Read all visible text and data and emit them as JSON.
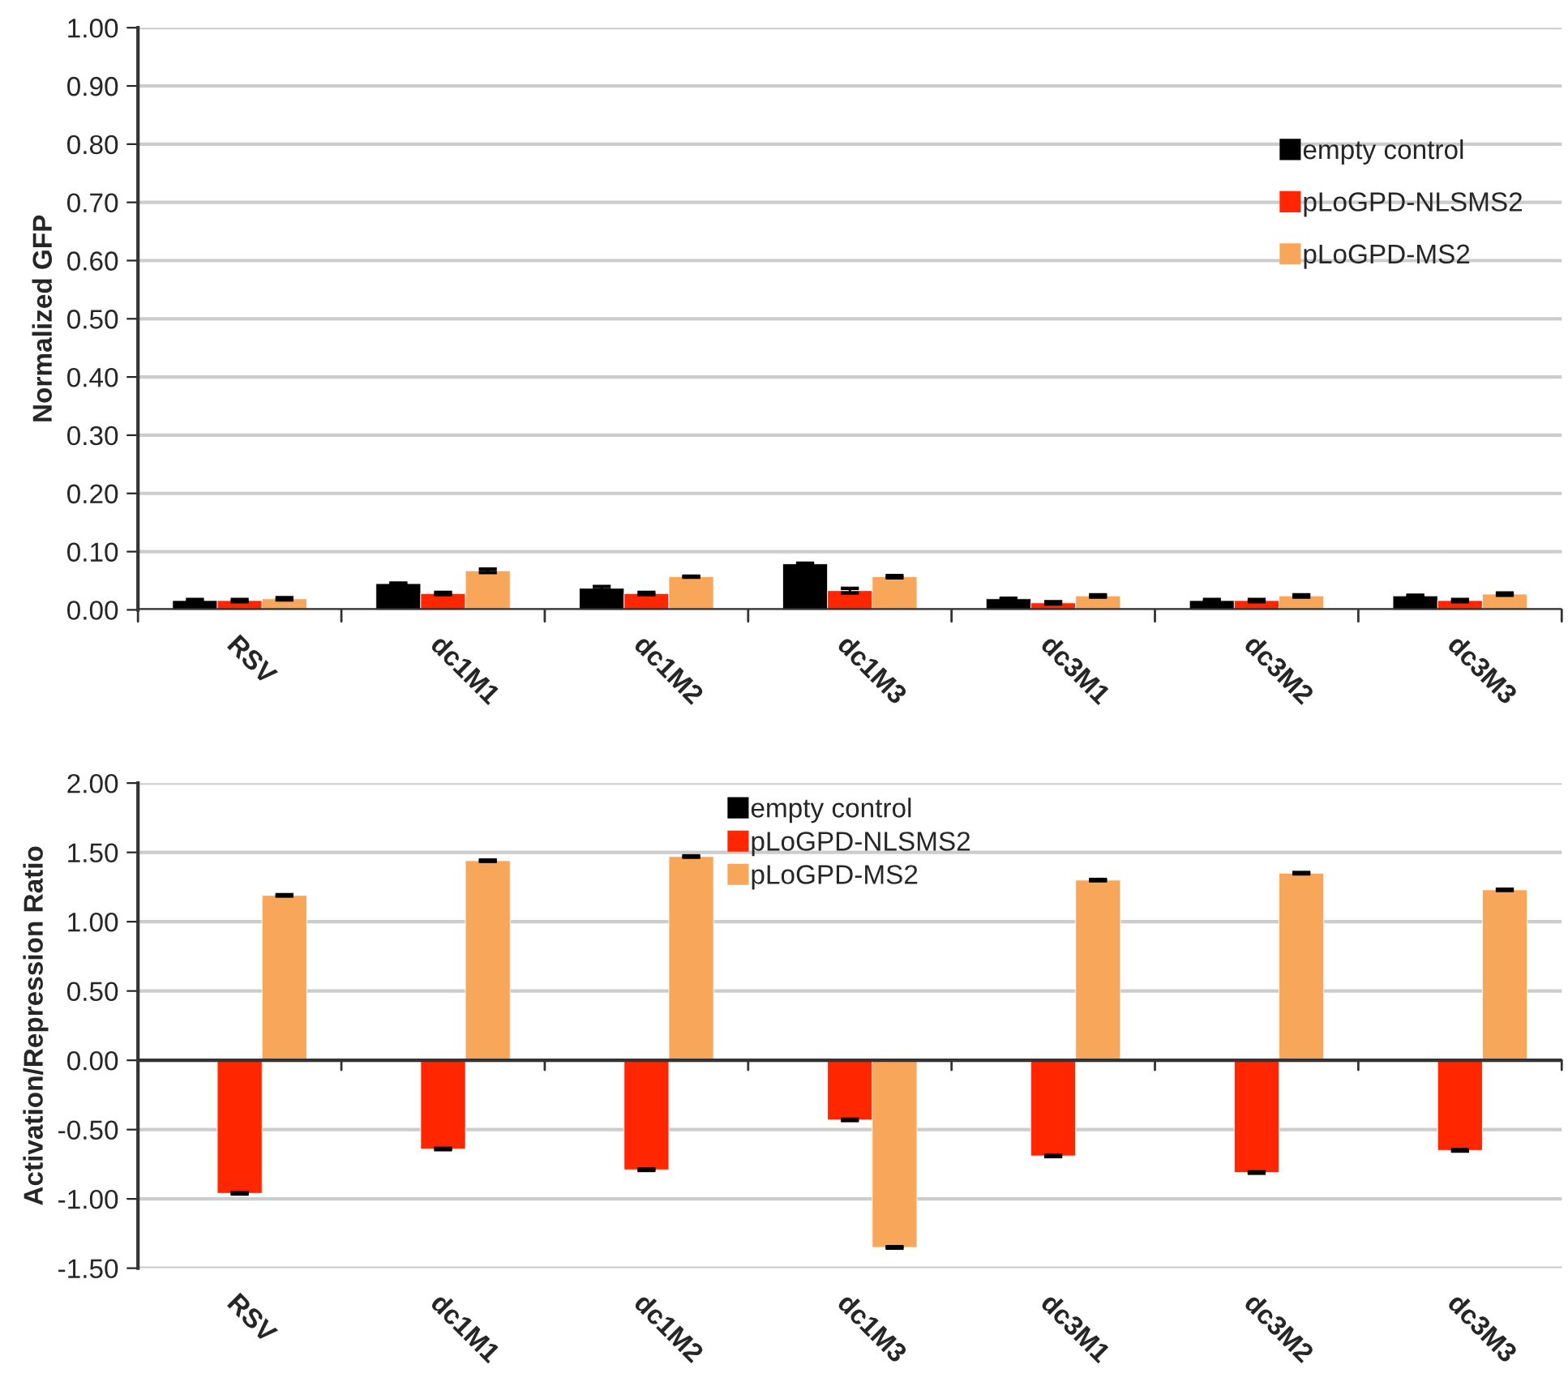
{
  "chart_data": [
    {
      "type": "bar",
      "ylabel": "Normalized GFP",
      "categories": [
        "RSV",
        "dc1M1",
        "dc1M2",
        "dc1M3",
        "dc3M1",
        "dc3M2",
        "dc3M3"
      ],
      "series": [
        {
          "name": "empty control",
          "color": "#000000",
          "values": [
            0.016,
            0.045,
            0.037,
            0.079,
            0.019,
            0.016,
            0.024
          ],
          "errors": [
            0.002,
            0.001,
            0.003,
            0.001,
            0.001,
            0.002,
            0.001
          ]
        },
        {
          "name": "pLoGPD-NLSMS2",
          "color": "#ff2600",
          "values": [
            0.016,
            0.028,
            0.028,
            0.033,
            0.012,
            0.016,
            0.016
          ],
          "errors": [
            0.002,
            0.002,
            0.002,
            0.004,
            0.002,
            0.002,
            0.002
          ]
        },
        {
          "name": "pLoGPD-MS2",
          "color": "#f8a75a",
          "values": [
            0.019,
            0.067,
            0.057,
            0.057,
            0.024,
            0.024,
            0.027
          ],
          "errors": [
            0.002,
            0.003,
            0.001,
            0.002,
            0.002,
            0.002,
            0.002
          ]
        }
      ],
      "ylim": [
        0,
        1
      ],
      "yticks": [
        {
          "value": 0,
          "label": "0.00"
        },
        {
          "value": 0.1,
          "label": "0.10"
        },
        {
          "value": 0.2,
          "label": "0.20"
        },
        {
          "value": 0.3,
          "label": "0.30"
        },
        {
          "value": 0.4,
          "label": "0.40"
        },
        {
          "value": 0.5,
          "label": "0.50"
        },
        {
          "value": 0.6,
          "label": "0.60"
        },
        {
          "value": 0.7,
          "label": "0.70"
        },
        {
          "value": 0.8,
          "label": "0.80"
        },
        {
          "value": 0.9,
          "label": "0.90"
        },
        {
          "value": 1,
          "label": "1.00"
        }
      ],
      "grid": "y",
      "legend": "right"
    },
    {
      "type": "bar",
      "ylabel": "Activation/Repression Ratio",
      "categories": [
        "RSV",
        "dc1M1",
        "dc1M2",
        "dc1M3",
        "dc3M1",
        "dc3M2",
        "dc3M3"
      ],
      "series": [
        {
          "name": "empty control",
          "color": "#000000",
          "values": [
            null,
            null,
            null,
            null,
            null,
            null,
            null
          ]
        },
        {
          "name": "pLoGPD-NLSMS2",
          "color": "#ff2600",
          "values": [
            -0.96,
            -0.64,
            -0.79,
            -0.43,
            -0.69,
            -0.81,
            -0.65
          ],
          "errors": [
            0.005,
            0.005,
            0.005,
            0.005,
            0.005,
            0.005,
            0.005
          ]
        },
        {
          "name": "pLoGPD-MS2",
          "color": "#f8a75a",
          "values": [
            1.19,
            1.44,
            1.47,
            -1.35,
            1.3,
            1.35,
            1.23
          ],
          "errors": [
            0.005,
            0.005,
            0.005,
            0.005,
            0.005,
            0.005,
            0.005
          ]
        }
      ],
      "ylim": [
        -1.5,
        2
      ],
      "yticks": [
        {
          "value": -1.5,
          "label": "-1.50"
        },
        {
          "value": -1,
          "label": "-1.00"
        },
        {
          "value": -0.5,
          "label": "-0.50"
        },
        {
          "value": 0,
          "label": "0.00"
        },
        {
          "value": 0.5,
          "label": "0.50"
        },
        {
          "value": 1,
          "label": "1.00"
        },
        {
          "value": 1.5,
          "label": "1.50"
        },
        {
          "value": 2,
          "label": "2.00"
        }
      ],
      "grid": "y",
      "legend": "top"
    }
  ]
}
